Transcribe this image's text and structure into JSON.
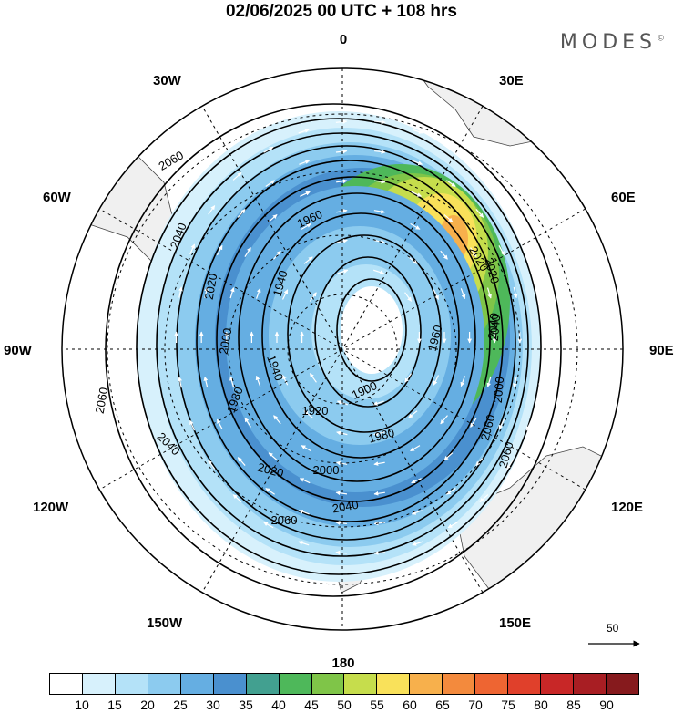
{
  "title": "02/06/2025  00 UTC  + 108 hrs",
  "brand": "MODES",
  "brand_mark": "©",
  "longitude_labels": {
    "top": "0",
    "bottom": "180",
    "left": "90W",
    "right": "90E",
    "nw30": "30W",
    "nw60": "60W",
    "ne30": "30E",
    "ne60": "60E",
    "sw120": "120W",
    "sw150": "150W",
    "se120": "120E",
    "se150": "150E"
  },
  "contour_labels": {
    "c2060a": "2060",
    "c2040a": "2040",
    "c2020a": "2020",
    "c2000a": "2000",
    "c1980a": "1980",
    "c1960a": "1960",
    "c1940a": "1940",
    "c1940b": "1940",
    "c1920a": "1920",
    "c1900a": "1900",
    "c1960b": "1960",
    "c1980b": "1980",
    "c2000b": "2000",
    "c2020b": "2020",
    "c2040b": "2040",
    "c2060b": "2060",
    "c2040c": "2040",
    "c2060c": "2060",
    "c2040d": "2040",
    "c2060d": "2060",
    "c2020c": "2020",
    "c2000c": "2000",
    "c2020d": "2020",
    "c2040e": "2040",
    "c2060e": "2060"
  },
  "reference_vector": "50",
  "colorbar": {
    "ticks": [
      "10",
      "15",
      "20",
      "25",
      "30",
      "35",
      "40",
      "45",
      "50",
      "55",
      "60",
      "65",
      "70",
      "75",
      "80",
      "85",
      "90"
    ],
    "colors": [
      "#ffffff",
      "#d7f1fc",
      "#b4e2f8",
      "#8ccbef",
      "#65aee2",
      "#4a90cf",
      "#42a090",
      "#4eb85a",
      "#7fc548",
      "#c6dd4c",
      "#f9e15a",
      "#f7b04c",
      "#f38a3d",
      "#ee6532",
      "#e0402b",
      "#c82727",
      "#a81e23",
      "#861a1d"
    ]
  },
  "colors": {
    "land": "#f0f0f0",
    "coast": "#444444",
    "contour": "#000000",
    "vector": "#ffffff"
  }
}
